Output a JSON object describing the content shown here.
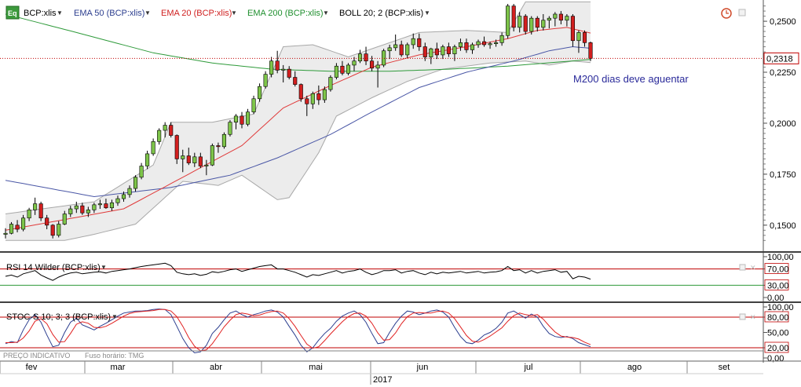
{
  "symbol_badge": "Eq",
  "legend": [
    {
      "label": "BCP:xlis",
      "color": "#000000"
    },
    {
      "label": "EMA 50 (BCP:xlis)",
      "color": "#2c3e8f"
    },
    {
      "label": "EMA 20 (BCP:xlis)",
      "color": "#d02020"
    },
    {
      "label": "EMA 200 (BCP:xlis)",
      "color": "#1f8f2e"
    },
    {
      "label": "BOLL 20; 2 (BCP:xlis)",
      "color": "#000000"
    }
  ],
  "annotation": "M200 dias deve aguentar",
  "last_price": "0,2318",
  "price_axis": [
    "0,2500",
    "0,2250",
    "0,2000",
    "0,1750",
    "0,1500"
  ],
  "rsi": {
    "label": "RSI 14 Wilder (BCP:xlis)",
    "axis": [
      "100,00",
      "70,00",
      "30,00",
      "0,00"
    ]
  },
  "stoch": {
    "label": "STOC-S 10; 3; 3 (BCP:xlis)",
    "axis": [
      "100,00",
      "80,00",
      "50,00",
      "20,00",
      "0,00"
    ]
  },
  "footer_left": "PREÇO INDICATIVO",
  "footer_tz": "Fuso horário: TMG",
  "months": [
    "fev",
    "mar",
    "abr",
    "mai",
    "jun",
    "jul",
    "ago",
    "set"
  ],
  "year": "2017",
  "colors": {
    "up": "#7ec54a",
    "down": "#d21f1f",
    "ema50": "#4a57a6",
    "ema20": "#e03a3a",
    "ema200": "#2e9a3a",
    "band_fill": "#ececec",
    "band_line": "#a8a8a8",
    "hline": "#c00000",
    "annotation": "#2a2a9a"
  },
  "chart_data": {
    "type": "candlestick",
    "price_range": [
      0.138,
      0.2585
    ],
    "last_price": 0.2318,
    "x_start": "2017-02-01",
    "candles": [
      [
        0.1455,
        0.1485,
        0.1435,
        0.146
      ],
      [
        0.146,
        0.1515,
        0.1455,
        0.1505
      ],
      [
        0.15,
        0.1525,
        0.1465,
        0.148
      ],
      [
        0.148,
        0.155,
        0.147,
        0.1535
      ],
      [
        0.1535,
        0.1585,
        0.152,
        0.1575
      ],
      [
        0.1575,
        0.1635,
        0.155,
        0.1605
      ],
      [
        0.1605,
        0.1615,
        0.152,
        0.1535
      ],
      [
        0.1535,
        0.155,
        0.148,
        0.15
      ],
      [
        0.15,
        0.1505,
        0.1435,
        0.145
      ],
      [
        0.145,
        0.152,
        0.144,
        0.1505
      ],
      [
        0.1505,
        0.157,
        0.15,
        0.1555
      ],
      [
        0.1555,
        0.1595,
        0.154,
        0.158
      ],
      [
        0.158,
        0.1615,
        0.156,
        0.1595
      ],
      [
        0.1595,
        0.161,
        0.155,
        0.156
      ],
      [
        0.156,
        0.159,
        0.154,
        0.1575
      ],
      [
        0.1575,
        0.161,
        0.156,
        0.16
      ],
      [
        0.16,
        0.1625,
        0.158,
        0.1605
      ],
      [
        0.1605,
        0.163,
        0.158,
        0.1585
      ],
      [
        0.1585,
        0.1625,
        0.157,
        0.161
      ],
      [
        0.161,
        0.1645,
        0.1595,
        0.163
      ],
      [
        0.163,
        0.1665,
        0.1615,
        0.165
      ],
      [
        0.165,
        0.1695,
        0.1635,
        0.168
      ],
      [
        0.168,
        0.1745,
        0.1665,
        0.1735
      ],
      [
        0.1735,
        0.1805,
        0.1725,
        0.179
      ],
      [
        0.179,
        0.1865,
        0.1775,
        0.185
      ],
      [
        0.185,
        0.1925,
        0.184,
        0.191
      ],
      [
        0.191,
        0.1975,
        0.1895,
        0.1965
      ],
      [
        0.1965,
        0.2005,
        0.193,
        0.199
      ],
      [
        0.199,
        0.2005,
        0.193,
        0.194
      ],
      [
        0.194,
        0.1945,
        0.18,
        0.1825
      ],
      [
        0.1825,
        0.187,
        0.176,
        0.184
      ],
      [
        0.184,
        0.188,
        0.1795,
        0.1805
      ],
      [
        0.1805,
        0.1855,
        0.1785,
        0.1835
      ],
      [
        0.1835,
        0.1855,
        0.178,
        0.179
      ],
      [
        0.179,
        0.182,
        0.1745,
        0.1795
      ],
      [
        0.1795,
        0.19,
        0.179,
        0.189
      ],
      [
        0.189,
        0.1905,
        0.1855,
        0.1885
      ],
      [
        0.1885,
        0.1955,
        0.1875,
        0.1945
      ],
      [
        0.1945,
        0.2015,
        0.1935,
        0.2005
      ],
      [
        0.2005,
        0.2045,
        0.197,
        0.2035
      ],
      [
        0.2035,
        0.2055,
        0.1975,
        0.1995
      ],
      [
        0.1995,
        0.207,
        0.1985,
        0.2055
      ],
      [
        0.2055,
        0.2135,
        0.2045,
        0.212
      ],
      [
        0.212,
        0.2195,
        0.2105,
        0.218
      ],
      [
        0.218,
        0.2255,
        0.217,
        0.224
      ],
      [
        0.224,
        0.2325,
        0.2225,
        0.2305
      ],
      [
        0.2305,
        0.2355,
        0.2245,
        0.226
      ],
      [
        0.226,
        0.2285,
        0.22,
        0.2265
      ],
      [
        0.2265,
        0.228,
        0.2215,
        0.2225
      ],
      [
        0.2225,
        0.2255,
        0.218,
        0.219
      ],
      [
        0.219,
        0.2195,
        0.2105,
        0.212
      ],
      [
        0.212,
        0.2135,
        0.2035,
        0.2095
      ],
      [
        0.2095,
        0.2155,
        0.207,
        0.2145
      ],
      [
        0.2145,
        0.2185,
        0.209,
        0.2115
      ],
      [
        0.2115,
        0.218,
        0.21,
        0.2165
      ],
      [
        0.2165,
        0.2235,
        0.2155,
        0.2225
      ],
      [
        0.2225,
        0.2295,
        0.2215,
        0.228
      ],
      [
        0.228,
        0.2305,
        0.2235,
        0.2245
      ],
      [
        0.2245,
        0.2295,
        0.2235,
        0.2285
      ],
      [
        0.2285,
        0.2325,
        0.2255,
        0.2305
      ],
      [
        0.2305,
        0.236,
        0.2295,
        0.234
      ],
      [
        0.234,
        0.2375,
        0.2285,
        0.2305
      ],
      [
        0.2305,
        0.233,
        0.2255,
        0.227
      ],
      [
        0.227,
        0.2305,
        0.2175,
        0.2285
      ],
      [
        0.2285,
        0.2365,
        0.2275,
        0.2355
      ],
      [
        0.2355,
        0.2385,
        0.2315,
        0.237
      ],
      [
        0.237,
        0.2435,
        0.2355,
        0.2385
      ],
      [
        0.2385,
        0.2405,
        0.2325,
        0.2335
      ],
      [
        0.2335,
        0.2395,
        0.232,
        0.2385
      ],
      [
        0.2385,
        0.244,
        0.2365,
        0.2415
      ],
      [
        0.2415,
        0.244,
        0.2355,
        0.2375
      ],
      [
        0.2375,
        0.2395,
        0.2305,
        0.2325
      ],
      [
        0.2325,
        0.237,
        0.229,
        0.2365
      ],
      [
        0.2365,
        0.2395,
        0.2315,
        0.2335
      ],
      [
        0.2335,
        0.2385,
        0.2315,
        0.2375
      ],
      [
        0.2375,
        0.2395,
        0.2325,
        0.234
      ],
      [
        0.234,
        0.2385,
        0.2305,
        0.2375
      ],
      [
        0.2375,
        0.2415,
        0.2355,
        0.2395
      ],
      [
        0.2395,
        0.2415,
        0.2345,
        0.236
      ],
      [
        0.236,
        0.2395,
        0.234,
        0.2385
      ],
      [
        0.2385,
        0.241,
        0.237,
        0.24
      ],
      [
        0.24,
        0.2425,
        0.2375,
        0.2385
      ],
      [
        0.2385,
        0.24,
        0.2365,
        0.239
      ],
      [
        0.239,
        0.241,
        0.2375,
        0.2395
      ],
      [
        0.2395,
        0.2445,
        0.238,
        0.243
      ],
      [
        0.243,
        0.2585,
        0.2415,
        0.2575
      ],
      [
        0.2575,
        0.2585,
        0.245,
        0.247
      ],
      [
        0.247,
        0.2545,
        0.2445,
        0.2525
      ],
      [
        0.2525,
        0.2535,
        0.2435,
        0.245
      ],
      [
        0.245,
        0.2525,
        0.2435,
        0.2515
      ],
      [
        0.2515,
        0.2525,
        0.245,
        0.247
      ],
      [
        0.247,
        0.2535,
        0.2455,
        0.2505
      ],
      [
        0.2505,
        0.2525,
        0.2465,
        0.2515
      ],
      [
        0.2515,
        0.2545,
        0.2475,
        0.2535
      ],
      [
        0.2535,
        0.255,
        0.2485,
        0.2505
      ],
      [
        0.2505,
        0.2535,
        0.2475,
        0.2525
      ],
      [
        0.2525,
        0.2535,
        0.2375,
        0.2405
      ],
      [
        0.2405,
        0.2455,
        0.2345,
        0.2445
      ],
      [
        0.2445,
        0.2455,
        0.2375,
        0.2395
      ],
      [
        0.2395,
        0.24,
        0.2305,
        0.2318
      ]
    ],
    "ema20": [
      [
        0,
        0.1475
      ],
      [
        20,
        0.158
      ],
      [
        30,
        0.1735
      ],
      [
        40,
        0.189
      ],
      [
        47,
        0.2075
      ],
      [
        55,
        0.2185
      ],
      [
        62,
        0.2275
      ],
      [
        70,
        0.2335
      ],
      [
        78,
        0.2375
      ],
      [
        85,
        0.2415
      ],
      [
        90,
        0.2455
      ],
      [
        95,
        0.247
      ],
      [
        100,
        0.2435
      ]
    ],
    "ema50": [
      [
        0,
        0.172
      ],
      [
        15,
        0.164
      ],
      [
        28,
        0.1685
      ],
      [
        38,
        0.1745
      ],
      [
        46,
        0.183
      ],
      [
        55,
        0.1945
      ],
      [
        62,
        0.2055
      ],
      [
        70,
        0.2175
      ],
      [
        78,
        0.225
      ],
      [
        86,
        0.2305
      ],
      [
        92,
        0.2355
      ],
      [
        96,
        0.2375
      ],
      [
        100,
        0.2365
      ]
    ],
    "ema200": [
      [
        0,
        0.2535
      ],
      [
        12,
        0.2445
      ],
      [
        25,
        0.2345
      ],
      [
        35,
        0.2295
      ],
      [
        45,
        0.2265
      ],
      [
        55,
        0.2255
      ],
      [
        65,
        0.2255
      ],
      [
        75,
        0.2265
      ],
      [
        85,
        0.228
      ],
      [
        100,
        0.2315
      ]
    ],
    "boll_upper": [
      [
        0,
        0.1555
      ],
      [
        15,
        0.1615
      ],
      [
        25,
        0.1795
      ],
      [
        28,
        0.2005
      ],
      [
        35,
        0.2005
      ],
      [
        42,
        0.2045
      ],
      [
        47,
        0.2375
      ],
      [
        52,
        0.2385
      ],
      [
        58,
        0.2325
      ],
      [
        65,
        0.2395
      ],
      [
        70,
        0.2445
      ],
      [
        78,
        0.2455
      ],
      [
        85,
        0.2445
      ],
      [
        88,
        0.2595
      ],
      [
        100,
        0.2595
      ]
    ],
    "boll_lower": [
      [
        0,
        0.1425
      ],
      [
        10,
        0.1425
      ],
      [
        15,
        0.1455
      ],
      [
        22,
        0.1505
      ],
      [
        30,
        0.1715
      ],
      [
        36,
        0.1695
      ],
      [
        40,
        0.1745
      ],
      [
        46,
        0.1625
      ],
      [
        48,
        0.1635
      ],
      [
        53,
        0.1855
      ],
      [
        56,
        0.2035
      ],
      [
        62,
        0.2125
      ],
      [
        68,
        0.2205
      ],
      [
        74,
        0.2265
      ],
      [
        82,
        0.2295
      ],
      [
        88,
        0.2305
      ],
      [
        92,
        0.2285
      ],
      [
        96,
        0.2305
      ],
      [
        100,
        0.2295
      ]
    ],
    "rsi_range": [
      0,
      100
    ],
    "rsi_levels": [
      70,
      30
    ],
    "rsi": [
      52,
      55,
      50,
      58,
      62,
      66,
      55,
      48,
      42,
      50,
      56,
      60,
      62,
      58,
      60,
      62,
      63,
      60,
      64,
      66,
      68,
      70,
      73,
      76,
      78,
      80,
      82,
      84,
      78,
      62,
      58,
      56,
      58,
      54,
      57,
      63,
      61,
      64,
      68,
      70,
      64,
      68,
      72,
      76,
      78,
      80,
      70,
      70,
      66,
      62,
      56,
      50,
      56,
      54,
      58,
      62,
      66,
      60,
      64,
      66,
      70,
      62,
      56,
      60,
      66,
      66,
      68,
      60,
      64,
      66,
      60,
      56,
      62,
      58,
      62,
      60,
      62,
      64,
      60,
      62,
      64,
      60,
      62,
      63,
      66,
      76,
      66,
      68,
      60,
      66,
      60,
      64,
      66,
      68,
      62,
      64,
      46,
      52,
      50,
      45
    ],
    "stoch_range": [
      0,
      100
    ],
    "stoch_levels": [
      80,
      20
    ],
    "stoch_k": [
      28,
      32,
      30,
      55,
      75,
      85,
      70,
      45,
      22,
      25,
      50,
      70,
      78,
      65,
      60,
      55,
      62,
      68,
      75,
      82,
      88,
      90,
      92,
      92,
      93,
      95,
      96,
      95,
      85,
      62,
      38,
      20,
      10,
      12,
      25,
      48,
      60,
      75,
      88,
      92,
      85,
      80,
      85,
      88,
      92,
      94,
      90,
      80,
      62,
      45,
      25,
      12,
      20,
      35,
      48,
      58,
      72,
      82,
      88,
      92,
      85,
      70,
      48,
      28,
      30,
      50,
      68,
      82,
      92,
      90,
      85,
      88,
      92,
      94,
      90,
      80,
      60,
      42,
      30,
      28,
      35,
      45,
      50,
      58,
      70,
      88,
      92,
      85,
      78,
      86,
      80,
      62,
      48,
      42,
      40,
      42,
      38,
      30,
      26,
      22
    ],
    "stoch_d": [
      30,
      30,
      31,
      39,
      53,
      72,
      77,
      67,
      46,
      31,
      32,
      48,
      66,
      71,
      68,
      60,
      59,
      62,
      68,
      75,
      82,
      87,
      90,
      91,
      92,
      93,
      95,
      95,
      92,
      81,
      62,
      40,
      23,
      14,
      16,
      28,
      44,
      61,
      74,
      85,
      88,
      86,
      83,
      84,
      88,
      91,
      92,
      88,
      77,
      62,
      44,
      27,
      19,
      22,
      34,
      47,
      59,
      71,
      81,
      87,
      88,
      82,
      68,
      49,
      35,
      36,
      49,
      67,
      81,
      88,
      89,
      88,
      88,
      91,
      92,
      88,
      77,
      61,
      44,
      33,
      31,
      36,
      43,
      51,
      59,
      72,
      83,
      88,
      85,
      83,
      85,
      76,
      63,
      51,
      43,
      41,
      40,
      37,
      31,
      26
    ]
  }
}
